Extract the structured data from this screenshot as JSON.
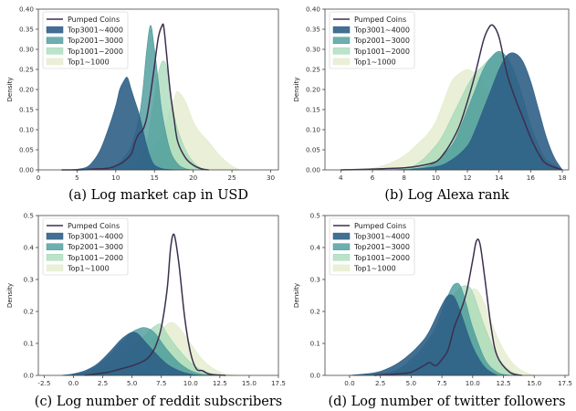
{
  "series_colors": {
    "Pumped Coins": "#3d2f4f",
    "Top3001~4000": "#2e5f86",
    "Top2001~3000": "#4a9a9a",
    "Top1001~2000": "#9fd7b4",
    "Top1~1000": "#e1ebc9"
  },
  "chart_data": [
    {
      "type": "area",
      "title": "(a) Log market cap in USD",
      "xlabel": "",
      "ylabel": "Density",
      "xlim": [
        0,
        31
      ],
      "ylim": [
        0,
        0.4
      ],
      "xticks": [
        0,
        5,
        10,
        15,
        20,
        25,
        30
      ],
      "yticks": [
        0.0,
        0.05,
        0.1,
        0.15,
        0.2,
        0.25,
        0.3,
        0.35,
        0.4
      ],
      "tick_decimals": 2,
      "legend": "top-left",
      "series": [
        {
          "name": "Top1~1000",
          "mode": "fill",
          "x": [
            10,
            12,
            14,
            15,
            16,
            16.6,
            17,
            17.6,
            18,
            19,
            20,
            21,
            22,
            23,
            24,
            25,
            26
          ],
          "y": [
            0,
            0.005,
            0.03,
            0.06,
            0.09,
            0.12,
            0.15,
            0.18,
            0.195,
            0.17,
            0.12,
            0.09,
            0.07,
            0.045,
            0.025,
            0.01,
            0
          ]
        },
        {
          "name": "Top1001~2000",
          "mode": "fill",
          "x": [
            10,
            12,
            13,
            14,
            14.5,
            15,
            15.5,
            16,
            16.5,
            17,
            17.5,
            18,
            19,
            20,
            21,
            22
          ],
          "y": [
            0,
            0.005,
            0.02,
            0.06,
            0.12,
            0.18,
            0.24,
            0.27,
            0.26,
            0.2,
            0.14,
            0.1,
            0.05,
            0.02,
            0.005,
            0
          ]
        },
        {
          "name": "Top2001~3000",
          "mode": "fill",
          "x": [
            7,
            9,
            10,
            11,
            12,
            13,
            13.5,
            14,
            14.5,
            15,
            15.5,
            16,
            17,
            18,
            19,
            20
          ],
          "y": [
            0,
            0.003,
            0.01,
            0.03,
            0.06,
            0.13,
            0.2,
            0.3,
            0.36,
            0.3,
            0.22,
            0.14,
            0.05,
            0.015,
            0.003,
            0
          ]
        },
        {
          "name": "Top3001~4000",
          "mode": "fill",
          "x": [
            4,
            6,
            7,
            8,
            9,
            10,
            10.5,
            11,
            11.5,
            12,
            12.5,
            13,
            13.5,
            14,
            14.5,
            15,
            16,
            17,
            18
          ],
          "y": [
            0,
            0.005,
            0.02,
            0.05,
            0.1,
            0.16,
            0.2,
            0.22,
            0.23,
            0.2,
            0.17,
            0.14,
            0.1,
            0.06,
            0.03,
            0.012,
            0.003,
            0.001,
            0
          ]
        },
        {
          "name": "Pumped Coins",
          "mode": "line",
          "x": [
            3,
            5,
            7,
            9,
            10,
            11,
            12,
            12.5,
            13,
            13.5,
            14,
            14.5,
            15,
            15.5,
            16,
            16.2,
            16.5,
            17,
            17.5,
            18,
            19,
            20,
            21,
            22
          ],
          "y": [
            0,
            0,
            0.002,
            0.004,
            0.01,
            0.02,
            0.04,
            0.07,
            0.09,
            0.1,
            0.13,
            0.19,
            0.26,
            0.33,
            0.36,
            0.355,
            0.3,
            0.2,
            0.13,
            0.07,
            0.03,
            0.012,
            0.003,
            0
          ]
        }
      ]
    },
    {
      "type": "area",
      "title": "(b) Log Alexa rank",
      "xlabel": "",
      "ylabel": "Density",
      "xlim": [
        3,
        18.4
      ],
      "ylim": [
        0,
        0.4
      ],
      "xticks": [
        4,
        6,
        8,
        10,
        12,
        14,
        16,
        18
      ],
      "yticks": [
        0.0,
        0.05,
        0.1,
        0.15,
        0.2,
        0.25,
        0.3,
        0.35,
        0.4
      ],
      "tick_decimals": 2,
      "legend": "top-left",
      "series": [
        {
          "name": "Top1~1000",
          "mode": "fill",
          "x": [
            5,
            6,
            7,
            8,
            9,
            9.5,
            10,
            10.5,
            11,
            11.5,
            12,
            12.5,
            13,
            13.5,
            14,
            14.5,
            15,
            16,
            17
          ],
          "y": [
            0,
            0.004,
            0.015,
            0.035,
            0.07,
            0.09,
            0.12,
            0.17,
            0.22,
            0.24,
            0.25,
            0.24,
            0.22,
            0.17,
            0.12,
            0.07,
            0.04,
            0.01,
            0
          ]
        },
        {
          "name": "Top1001~2000",
          "mode": "fill",
          "x": [
            6,
            8,
            9,
            10,
            10.5,
            11,
            11.5,
            12,
            12.5,
            13,
            13.5,
            14,
            14.5,
            15,
            15.5,
            16,
            17,
            18
          ],
          "y": [
            0,
            0.004,
            0.02,
            0.06,
            0.09,
            0.13,
            0.17,
            0.21,
            0.24,
            0.26,
            0.28,
            0.29,
            0.26,
            0.2,
            0.13,
            0.07,
            0.015,
            0
          ]
        },
        {
          "name": "Top2001~3000",
          "mode": "fill",
          "x": [
            7,
            9,
            10,
            11,
            11.5,
            12,
            12.5,
            13,
            13.5,
            14,
            14.5,
            15,
            15.5,
            16,
            16.5,
            17,
            18
          ],
          "y": [
            0,
            0.005,
            0.02,
            0.06,
            0.1,
            0.15,
            0.2,
            0.25,
            0.28,
            0.295,
            0.28,
            0.24,
            0.18,
            0.11,
            0.06,
            0.025,
            0
          ]
        },
        {
          "name": "Top3001~4000",
          "mode": "fill",
          "x": [
            8,
            10,
            11,
            12,
            12.5,
            13,
            13.5,
            14,
            14.5,
            15,
            15.5,
            16,
            16.5,
            17,
            17.5,
            18
          ],
          "y": [
            0,
            0.008,
            0.025,
            0.06,
            0.1,
            0.15,
            0.2,
            0.25,
            0.285,
            0.29,
            0.27,
            0.22,
            0.15,
            0.08,
            0.03,
            0
          ]
        },
        {
          "name": "Pumped Coins",
          "mode": "line",
          "x": [
            4,
            6,
            8,
            9,
            10,
            10.5,
            11,
            11.5,
            12,
            12.5,
            13,
            13.3,
            13.6,
            14,
            14.5,
            15,
            15.5,
            16,
            16.5,
            17,
            18
          ],
          "y": [
            0,
            0.002,
            0.005,
            0.01,
            0.02,
            0.04,
            0.07,
            0.11,
            0.17,
            0.24,
            0.32,
            0.35,
            0.36,
            0.33,
            0.24,
            0.18,
            0.13,
            0.08,
            0.04,
            0.015,
            0
          ]
        }
      ]
    },
    {
      "type": "area",
      "title": "(c) Log number of reddit subscribers",
      "xlabel": "",
      "ylabel": "Density",
      "xlim": [
        -3,
        17.5
      ],
      "ylim": [
        0,
        0.5
      ],
      "xticks": [
        -2.5,
        0.0,
        2.5,
        5.0,
        7.5,
        10.0,
        12.5,
        15.0,
        17.5
      ],
      "yticks": [
        0.0,
        0.1,
        0.2,
        0.3,
        0.4,
        0.5
      ],
      "tick_decimals": 1,
      "legend": "top-left",
      "series": [
        {
          "name": "Top1~1000",
          "mode": "fill",
          "x": [
            2,
            3,
            4,
            5,
            6,
            7,
            7.5,
            8,
            8.5,
            9,
            10,
            11,
            12,
            13,
            14
          ],
          "y": [
            0,
            0.01,
            0.03,
            0.06,
            0.09,
            0.12,
            0.14,
            0.16,
            0.165,
            0.15,
            0.1,
            0.05,
            0.02,
            0.005,
            0
          ]
        },
        {
          "name": "Top1001~2000",
          "mode": "fill",
          "x": [
            0,
            2,
            3,
            4,
            5,
            6,
            6.5,
            7,
            7.5,
            8,
            9,
            10,
            11,
            12,
            13
          ],
          "y": [
            0,
            0.01,
            0.03,
            0.06,
            0.09,
            0.12,
            0.14,
            0.155,
            0.16,
            0.13,
            0.08,
            0.04,
            0.015,
            0.004,
            0
          ]
        },
        {
          "name": "Top2001~3000",
          "mode": "fill",
          "x": [
            -1,
            1,
            2,
            3,
            4,
            5,
            5.5,
            6,
            6.5,
            7,
            8,
            9,
            10,
            11,
            12
          ],
          "y": [
            0,
            0.01,
            0.03,
            0.06,
            0.1,
            0.135,
            0.145,
            0.15,
            0.145,
            0.13,
            0.08,
            0.04,
            0.015,
            0.004,
            0
          ]
        },
        {
          "name": "Top3001~4000",
          "mode": "fill",
          "x": [
            -1,
            0,
            1,
            2,
            3,
            4,
            4.5,
            5,
            5.5,
            6,
            7,
            8,
            9,
            10,
            11
          ],
          "y": [
            0,
            0.005,
            0.015,
            0.035,
            0.07,
            0.11,
            0.125,
            0.135,
            0.13,
            0.11,
            0.07,
            0.035,
            0.015,
            0.004,
            0
          ]
        },
        {
          "name": "Pumped Coins",
          "mode": "line",
          "x": [
            1,
            2,
            3,
            4,
            5,
            6,
            6.5,
            7,
            7.5,
            8,
            8.3,
            8.6,
            9,
            9.5,
            10,
            10.5,
            11,
            11.5,
            12,
            13
          ],
          "y": [
            0,
            0.005,
            0.01,
            0.02,
            0.03,
            0.045,
            0.06,
            0.09,
            0.15,
            0.27,
            0.4,
            0.44,
            0.35,
            0.18,
            0.07,
            0.02,
            0.015,
            0.005,
            0.002,
            0
          ]
        }
      ]
    },
    {
      "type": "area",
      "title": "(d) Log number of twitter followers",
      "xlabel": "",
      "ylabel": "Density",
      "xlim": [
        -2,
        17.8
      ],
      "ylim": [
        0,
        0.5
      ],
      "xticks": [
        0.0,
        2.5,
        5.0,
        7.5,
        10.0,
        12.5,
        15.0,
        17.5
      ],
      "yticks": [
        0.0,
        0.1,
        0.2,
        0.3,
        0.4,
        0.5
      ],
      "tick_decimals": 1,
      "legend": "top-left",
      "series": [
        {
          "name": "Top1~1000",
          "mode": "fill",
          "x": [
            3,
            5,
            6,
            7,
            8,
            9,
            9.5,
            10,
            10.5,
            11,
            12,
            13,
            14,
            15
          ],
          "y": [
            0,
            0.01,
            0.03,
            0.07,
            0.13,
            0.2,
            0.24,
            0.27,
            0.26,
            0.22,
            0.12,
            0.05,
            0.015,
            0
          ]
        },
        {
          "name": "Top1001~2000",
          "mode": "fill",
          "x": [
            2,
            4,
            5,
            6,
            7,
            8,
            8.5,
            9,
            9.5,
            10,
            11,
            12,
            13,
            14
          ],
          "y": [
            0,
            0.01,
            0.03,
            0.07,
            0.13,
            0.2,
            0.25,
            0.275,
            0.28,
            0.26,
            0.15,
            0.06,
            0.015,
            0
          ]
        },
        {
          "name": "Top2001~3000",
          "mode": "fill",
          "x": [
            1,
            3,
            4,
            5,
            6,
            7,
            7.5,
            8,
            8.5,
            9,
            9.5,
            10,
            11,
            12,
            13
          ],
          "y": [
            0,
            0.008,
            0.02,
            0.05,
            0.09,
            0.15,
            0.2,
            0.25,
            0.285,
            0.28,
            0.22,
            0.15,
            0.05,
            0.01,
            0
          ]
        },
        {
          "name": "Top3001~4000",
          "mode": "fill",
          "x": [
            0,
            2,
            3,
            4,
            5,
            6,
            6.5,
            7,
            7.5,
            8,
            8.5,
            9,
            10,
            11,
            12
          ],
          "y": [
            0,
            0.008,
            0.02,
            0.04,
            0.07,
            0.11,
            0.14,
            0.18,
            0.22,
            0.25,
            0.245,
            0.2,
            0.09,
            0.025,
            0
          ]
        },
        {
          "name": "Pumped Coins",
          "mode": "line",
          "x": [
            2,
            4,
            5,
            6,
            6.5,
            7,
            7.5,
            8,
            8.5,
            9,
            9.5,
            10,
            10.3,
            10.6,
            11,
            11.5,
            12,
            13,
            14
          ],
          "y": [
            0,
            0.005,
            0.01,
            0.03,
            0.04,
            0.03,
            0.05,
            0.08,
            0.15,
            0.2,
            0.26,
            0.36,
            0.42,
            0.41,
            0.3,
            0.15,
            0.06,
            0.01,
            0
          ]
        }
      ]
    }
  ]
}
